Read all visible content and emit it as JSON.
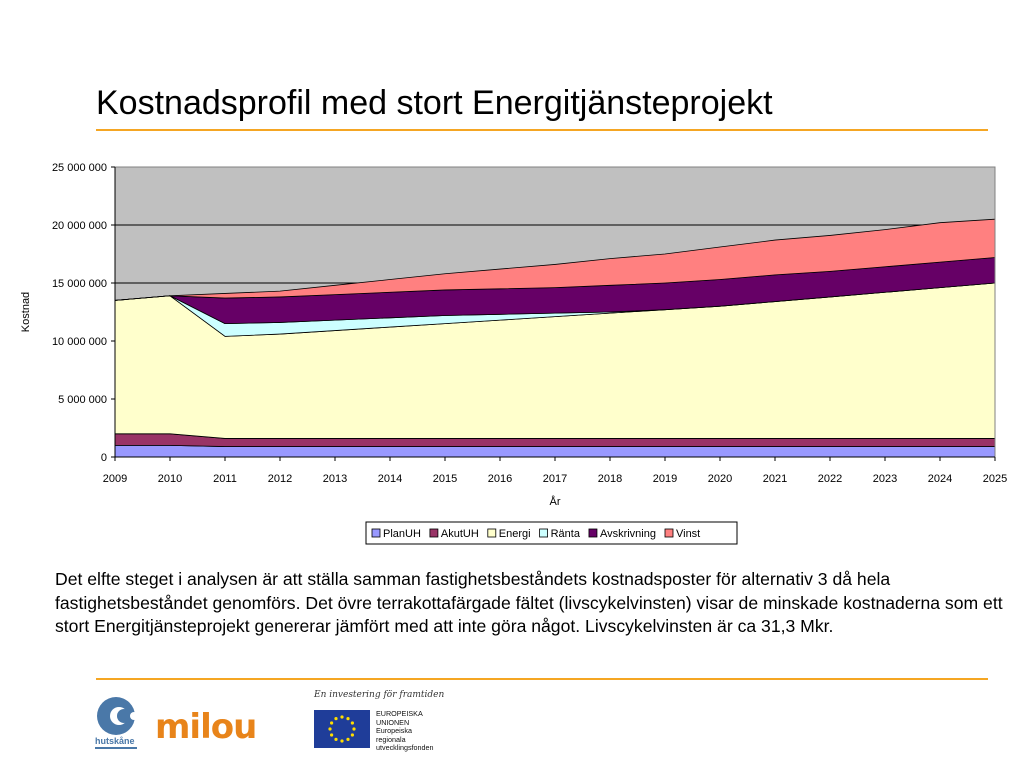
{
  "slide": {
    "title": "Kostnadsprofil med stort Energitjänsteprojekt",
    "accent_color": "#f5a623",
    "description": "Det elfte steget i analysen är att ställa samman fastighetsbeståndets kostnadsposter för alternativ 3 då hela fastighetsbeståndet genomförs. Det övre terrakottafärgade fältet (livscykelvinsten) visar de minskade kostnaderna som ett stort Energitjänsteprojekt genererar jämfört med att inte göra något. Livscykelvinsten är ca 31,3 Mkr."
  },
  "logos": {
    "hutskane": {
      "name": "hutskåne",
      "color": "#4a78a8",
      "icon": "hutskane-logo"
    },
    "milou": {
      "name": "milou",
      "color": "#e8841a"
    },
    "eu_tagline": "En investering för framtiden",
    "eu_lines": [
      "EUROPEISKA",
      "UNIONEN",
      "Europeiska",
      "regionala",
      "utvecklingsfonden"
    ],
    "eu_flag_color": "#1f3d99",
    "eu_star_color": "#ffdd00"
  },
  "chart_data": {
    "type": "area",
    "stacked": true,
    "title": "",
    "xlabel": "År",
    "ylabel": "Kostnad",
    "x": [
      "2009",
      "2010",
      "2011",
      "2012",
      "2013",
      "2014",
      "2015",
      "2016",
      "2017",
      "2018",
      "2019",
      "2020",
      "2021",
      "2022",
      "2023",
      "2024",
      "2025"
    ],
    "ylim": [
      0,
      25000000
    ],
    "yticks": [
      0,
      5000000,
      10000000,
      15000000,
      20000000,
      25000000
    ],
    "ytick_labels": [
      "0",
      "5 000 000",
      "10 000 000",
      "15 000 000",
      "20 000 000",
      "25 000 000"
    ],
    "grid": true,
    "plot_background": "#c0c0c0",
    "legend_position": "bottom",
    "series": [
      {
        "name": "PlanUH",
        "color": "#9999ff",
        "values": [
          1000000,
          1000000,
          900000,
          900000,
          900000,
          900000,
          900000,
          900000,
          900000,
          900000,
          900000,
          900000,
          900000,
          900000,
          900000,
          900000,
          900000
        ]
      },
      {
        "name": "AkutUH",
        "color": "#993366",
        "values": [
          1000000,
          1000000,
          700000,
          700000,
          700000,
          700000,
          700000,
          700000,
          700000,
          700000,
          700000,
          700000,
          700000,
          700000,
          700000,
          700000,
          700000
        ]
      },
      {
        "name": "Energi",
        "color": "#ffffcc",
        "values": [
          11500000,
          11900000,
          8800000,
          9000000,
          9300000,
          9600000,
          9900000,
          10200000,
          10500000,
          10800000,
          11100000,
          11400000,
          11800000,
          12200000,
          12600000,
          13000000,
          13400000
        ]
      },
      {
        "name": "Ränta",
        "color": "#ccffff",
        "values": [
          0,
          0,
          1100000,
          1000000,
          900000,
          800000,
          700000,
          500000,
          300000,
          100000,
          0,
          0,
          0,
          0,
          0,
          0,
          0
        ]
      },
      {
        "name": "Avskrivning",
        "color": "#660066",
        "values": [
          0,
          0,
          2200000,
          2200000,
          2200000,
          2200000,
          2200000,
          2200000,
          2200000,
          2300000,
          2300000,
          2300000,
          2300000,
          2200000,
          2200000,
          2200000,
          2200000
        ]
      },
      {
        "name": "Vinst",
        "color": "#ff8080",
        "values": [
          0,
          0,
          400000,
          500000,
          800000,
          1100000,
          1400000,
          1700000,
          2000000,
          2300000,
          2500000,
          2800000,
          3000000,
          3100000,
          3200000,
          3400000,
          3300000
        ]
      }
    ]
  }
}
